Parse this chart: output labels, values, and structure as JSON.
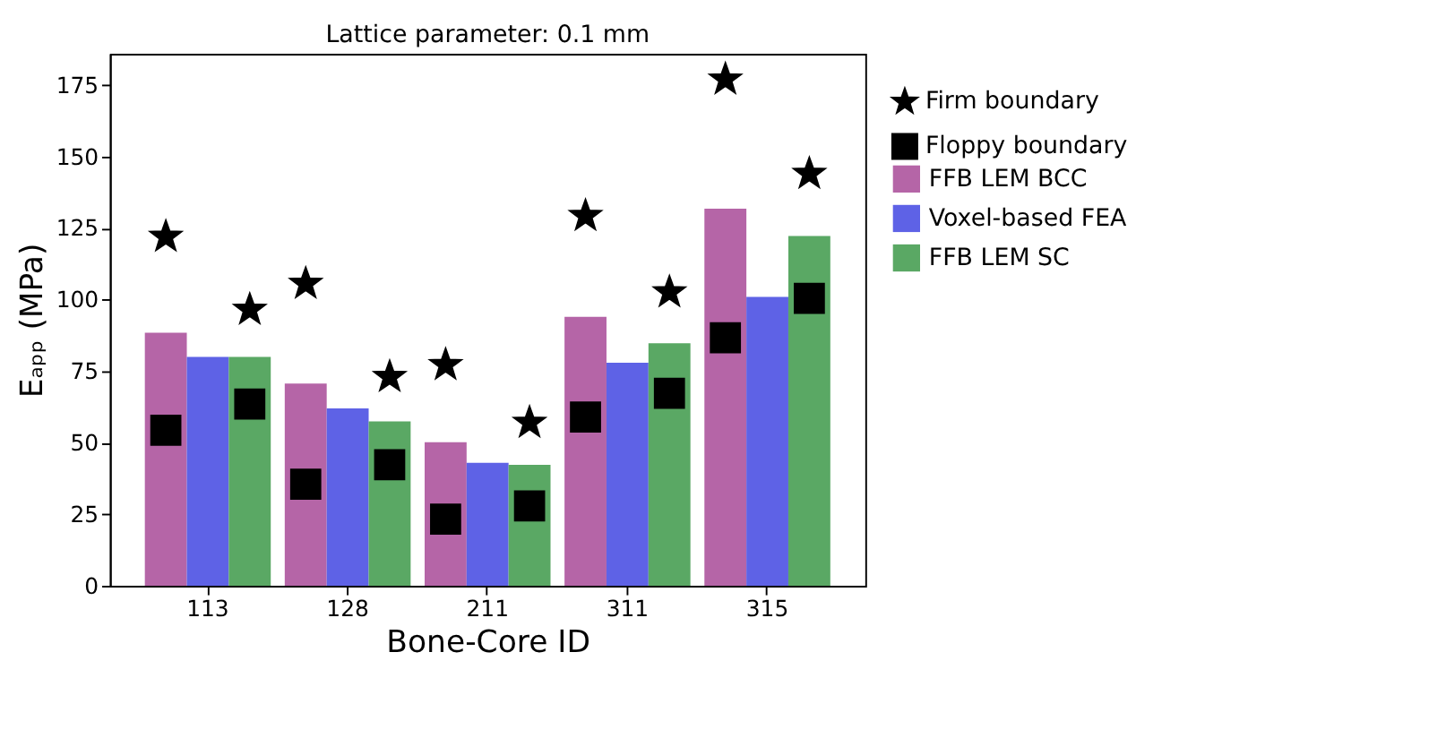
{
  "chart_data": {
    "type": "bar",
    "title": "Lattice parameter: 0.1 mm",
    "xlabel": "Bone-Core ID",
    "ylabel": "Eₐₚₚ (MPa)",
    "categories": [
      "113",
      "128",
      "211",
      "311",
      "315"
    ],
    "ylim": [
      0,
      186
    ],
    "yticks": [
      0,
      25,
      50,
      75,
      100,
      125,
      150,
      175
    ],
    "grid": false,
    "legend": "right",
    "series": [
      {
        "name": "Firm boundary",
        "type": "scatter",
        "marker": "star",
        "color": "#000000",
        "x": [
          "113",
          "113",
          "128",
          "128",
          "211",
          "211",
          "311",
          "311",
          "315",
          "315"
        ],
        "values": [
          122,
          96.5,
          105.6,
          73,
          77.2,
          57,
          129.3,
          102.6,
          177,
          144
        ]
      },
      {
        "name": "Floppy boundary",
        "type": "scatter",
        "marker": "square",
        "color": "#000000",
        "x": [
          "113",
          "113",
          "128",
          "128",
          "211",
          "211",
          "311",
          "311",
          "315",
          "315"
        ],
        "values": [
          54.4,
          63.5,
          35.5,
          42.3,
          23.3,
          27.9,
          59,
          67.3,
          86.7,
          100.5
        ]
      },
      {
        "name": "FFB LEM BCC",
        "color": "#b565a7",
        "values": [
          88.5,
          70.7,
          50.2,
          94,
          131.8
        ]
      },
      {
        "name": "Voxel-based FEA",
        "color": "#5e62e6",
        "values": [
          80,
          62,
          43,
          78,
          101
        ]
      },
      {
        "name": "FFB LEM SC",
        "color": "#5aa864",
        "values": [
          80,
          57.5,
          42.3,
          84.8,
          122.3
        ]
      }
    ]
  }
}
